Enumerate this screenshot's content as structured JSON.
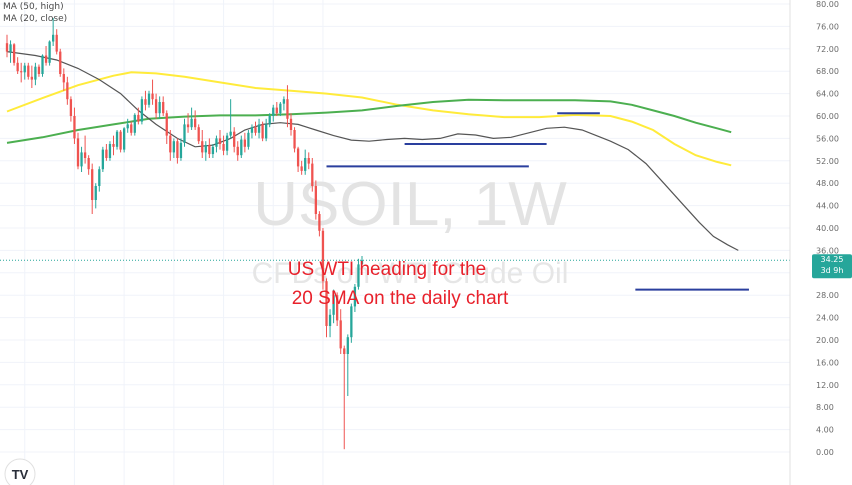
{
  "indicators": [
    {
      "label": "MA (50, high)"
    },
    {
      "label": "MA (20, close)"
    }
  ],
  "watermark": {
    "symbol": "USOIL, 1W",
    "description": "CFDs on WTI Crude Oil"
  },
  "annotation": {
    "line1": "US WTI heading for the",
    "line2": "20 SMA on the daily chart"
  },
  "price_badge": {
    "price": "34.25",
    "time": "3d 9h"
  },
  "logo_text": "TV",
  "colors": {
    "up": "#26a69a",
    "down": "#ef5350",
    "ma50": "#4caf50",
    "ma_yellow": "#ffeb3b",
    "ma20": "#555555",
    "support": "#2a3f9e",
    "badge": "#26a69a",
    "annotation": "#e8212b"
  },
  "chart_data": {
    "type": "candlestick",
    "ylim": [
      0,
      80
    ],
    "yticks": [
      "80.00",
      "76.00",
      "72.00",
      "68.00",
      "64.00",
      "60.00",
      "56.00",
      "52.00",
      "48.00",
      "44.00",
      "40.00",
      "36.00",
      "32.00",
      "28.00",
      "24.00",
      "20.00",
      "16.00",
      "12.00",
      "8.00",
      "4.00",
      "0.00"
    ],
    "candles": [
      [
        73.0,
        74.5,
        70.5,
        71.5
      ],
      [
        71.5,
        73.5,
        69.5,
        72.8
      ],
      [
        72.8,
        73.0,
        69.0,
        69.5
      ],
      [
        69.5,
        70.5,
        67.5,
        68.0
      ],
      [
        68.0,
        69.5,
        66.0,
        67.8
      ],
      [
        67.8,
        69.5,
        66.5,
        69.0
      ],
      [
        69.0,
        69.5,
        66.5,
        67.0
      ],
      [
        67.0,
        69.0,
        65.0,
        66.5
      ],
      [
        66.5,
        69.5,
        65.5,
        68.8
      ],
      [
        68.8,
        69.2,
        67.0,
        67.5
      ],
      [
        67.5,
        71.0,
        67.0,
        70.8
      ],
      [
        70.8,
        72.5,
        69.0,
        69.5
      ],
      [
        69.5,
        73.5,
        69.0,
        73.3
      ],
      [
        73.3,
        77.5,
        72.5,
        74.5
      ],
      [
        74.5,
        75.5,
        71.0,
        71.5
      ],
      [
        71.5,
        72.0,
        67.0,
        67.5
      ],
      [
        67.5,
        68.5,
        64.5,
        66.0
      ],
      [
        66.0,
        67.0,
        62.0,
        63.0
      ],
      [
        63.0,
        63.5,
        59.0,
        60.0
      ],
      [
        60.0,
        61.5,
        55.0,
        56.0
      ],
      [
        56.0,
        57.0,
        50.5,
        51.0
      ],
      [
        51.0,
        54.5,
        50.0,
        53.5
      ],
      [
        53.5,
        56.5,
        51.5,
        52.5
      ],
      [
        52.5,
        53.0,
        49.5,
        50.5
      ],
      [
        50.5,
        51.5,
        42.5,
        45.0
      ],
      [
        45.0,
        48.0,
        43.5,
        47.5
      ],
      [
        47.5,
        51.0,
        46.5,
        50.5
      ],
      [
        50.5,
        54.5,
        50.0,
        54.0
      ],
      [
        54.0,
        55.0,
        52.0,
        52.5
      ],
      [
        52.5,
        55.5,
        52.0,
        55.0
      ],
      [
        55.0,
        56.5,
        53.0,
        54.5
      ],
      [
        54.5,
        57.5,
        54.0,
        57.2
      ],
      [
        57.2,
        57.5,
        53.5,
        54.0
      ],
      [
        54.0,
        58.0,
        53.5,
        57.8
      ],
      [
        57.8,
        59.5,
        57.0,
        58.5
      ],
      [
        58.5,
        59.0,
        56.5,
        57.0
      ],
      [
        57.0,
        60.5,
        56.5,
        60.2
      ],
      [
        60.2,
        61.5,
        58.5,
        59.0
      ],
      [
        59.0,
        63.5,
        58.5,
        63.0
      ],
      [
        63.0,
        64.5,
        61.0,
        62.0
      ],
      [
        62.0,
        64.5,
        61.5,
        64.0
      ],
      [
        64.0,
        66.5,
        62.0,
        63.0
      ],
      [
        63.0,
        64.0,
        59.5,
        60.5
      ],
      [
        60.5,
        63.5,
        59.5,
        62.5
      ],
      [
        62.5,
        63.5,
        60.0,
        60.5
      ],
      [
        60.5,
        61.0,
        55.0,
        56.5
      ],
      [
        56.5,
        57.5,
        52.0,
        53.5
      ],
      [
        53.5,
        56.0,
        52.5,
        55.5
      ],
      [
        55.5,
        56.0,
        51.5,
        52.5
      ],
      [
        52.5,
        56.0,
        52.0,
        55.2
      ],
      [
        55.2,
        59.5,
        54.5,
        58.5
      ],
      [
        58.5,
        60.5,
        57.0,
        58.0
      ],
      [
        58.0,
        61.5,
        57.5,
        59.5
      ],
      [
        59.5,
        61.0,
        57.5,
        58.0
      ],
      [
        58.0,
        58.5,
        55.0,
        55.5
      ],
      [
        55.5,
        57.5,
        52.5,
        53.5
      ],
      [
        53.5,
        55.5,
        52.0,
        54.8
      ],
      [
        54.8,
        56.0,
        52.5,
        53.2
      ],
      [
        53.2,
        55.0,
        52.5,
        54.5
      ],
      [
        54.5,
        56.5,
        53.5,
        56.0
      ],
      [
        56.0,
        57.5,
        54.0,
        55.0
      ],
      [
        55.0,
        56.5,
        53.0,
        53.8
      ],
      [
        53.8,
        57.0,
        53.0,
        56.5
      ],
      [
        56.5,
        63.0,
        56.0,
        57.2
      ],
      [
        57.2,
        58.0,
        53.5,
        54.5
      ],
      [
        54.5,
        55.5,
        52.0,
        53.0
      ],
      [
        53.0,
        56.5,
        52.5,
        55.8
      ],
      [
        55.8,
        57.0,
        53.5,
        54.5
      ],
      [
        54.5,
        57.5,
        54.0,
        57.0
      ],
      [
        57.0,
        58.5,
        56.0,
        58.0
      ],
      [
        58.0,
        59.0,
        56.5,
        57.0
      ],
      [
        57.0,
        59.5,
        56.0,
        58.5
      ],
      [
        58.5,
        59.0,
        55.5,
        56.0
      ],
      [
        56.0,
        59.5,
        55.5,
        58.5
      ],
      [
        58.5,
        60.5,
        58.0,
        60.0
      ],
      [
        60.0,
        62.0,
        59.0,
        61.5
      ],
      [
        61.5,
        62.5,
        60.0,
        60.5
      ],
      [
        60.5,
        62.5,
        60.0,
        62.2
      ],
      [
        62.2,
        63.5,
        61.0,
        63.0
      ],
      [
        63.0,
        65.5,
        58.0,
        59.5
      ],
      [
        59.5,
        60.5,
        56.5,
        57.5
      ],
      [
        57.5,
        58.0,
        53.5,
        54.2
      ],
      [
        54.2,
        54.5,
        50.0,
        51.0
      ],
      [
        51.0,
        52.0,
        49.5,
        50.2
      ],
      [
        50.2,
        54.0,
        49.5,
        52.5
      ],
      [
        52.5,
        53.5,
        50.5,
        51.5
      ],
      [
        51.5,
        52.5,
        46.5,
        47.5
      ],
      [
        47.5,
        48.5,
        41.5,
        42.5
      ],
      [
        42.5,
        43.0,
        38.5,
        39.5
      ],
      [
        39.5,
        40.0,
        29.0,
        30.5
      ],
      [
        30.5,
        31.0,
        20.5,
        22.5
      ],
      [
        22.5,
        25.5,
        20.5,
        24.5
      ],
      [
        24.5,
        29.0,
        23.0,
        28.0
      ],
      [
        28.0,
        28.5,
        22.5,
        23.5
      ],
      [
        23.5,
        25.5,
        17.5,
        18.5
      ],
      [
        18.5,
        19.0,
        0.5,
        17.5
      ],
      [
        17.5,
        21.0,
        10.0,
        20.5
      ],
      [
        20.5,
        26.5,
        19.5,
        26.0
      ],
      [
        26.0,
        30.0,
        25.0,
        29.5
      ],
      [
        29.5,
        34.5,
        29.0,
        33.5
      ],
      [
        33.5,
        35.0,
        33.0,
        34.25
      ]
    ],
    "ma20": [
      [
        0,
        71.5
      ],
      [
        8,
        70.8
      ],
      [
        14,
        70.0
      ],
      [
        20,
        68.5
      ],
      [
        26,
        66.5
      ],
      [
        32,
        64.0
      ],
      [
        37,
        61.0
      ],
      [
        42,
        58.5
      ],
      [
        48,
        56.0
      ],
      [
        53,
        54.5
      ],
      [
        58,
        54.8
      ],
      [
        63,
        56.0
      ],
      [
        67,
        57.5
      ],
      [
        72,
        58.5
      ],
      [
        77,
        58.8
      ],
      [
        82,
        58.5
      ],
      [
        87,
        57.5
      ],
      [
        92,
        56.5
      ],
      [
        97,
        55.7
      ],
      [
        102,
        55.5
      ],
      [
        107,
        55.8
      ],
      [
        112,
        56.0
      ],
      [
        117,
        55.8
      ],
      [
        122,
        56.0
      ],
      [
        127,
        56.8
      ],
      [
        132,
        56.6
      ],
      [
        137,
        56.0
      ],
      [
        142,
        56.2
      ],
      [
        147,
        57.0
      ],
      [
        152,
        57.8
      ],
      [
        157,
        58.0
      ],
      [
        162,
        57.5
      ],
      [
        166,
        56.5
      ],
      [
        170,
        55.5
      ],
      [
        175,
        54.0
      ],
      [
        180,
        51.5
      ],
      [
        185,
        48.0
      ],
      [
        190,
        44.5
      ],
      [
        195,
        41.0
      ],
      [
        199,
        38.5
      ],
      [
        203,
        37.0
      ],
      [
        206,
        36.0
      ]
    ],
    "ma50": [
      [
        0,
        55.2
      ],
      [
        10,
        56.2
      ],
      [
        20,
        57.5
      ],
      [
        30,
        58.5
      ],
      [
        40,
        59.5
      ],
      [
        50,
        59.9
      ],
      [
        60,
        60.1
      ],
      [
        70,
        60.1
      ],
      [
        80,
        60.3
      ],
      [
        90,
        60.6
      ],
      [
        100,
        61.0
      ],
      [
        110,
        61.8
      ],
      [
        120,
        62.5
      ],
      [
        130,
        62.9
      ],
      [
        140,
        62.8
      ],
      [
        150,
        62.8
      ],
      [
        160,
        62.8
      ],
      [
        170,
        62.6
      ],
      [
        176,
        62.0
      ],
      [
        182,
        61.0
      ],
      [
        188,
        60.0
      ],
      [
        194,
        58.8
      ],
      [
        200,
        57.8
      ],
      [
        204,
        57.1
      ]
    ],
    "ma_yellow": [
      [
        0,
        60.8
      ],
      [
        10,
        63.2
      ],
      [
        20,
        65.5
      ],
      [
        30,
        67.2
      ],
      [
        35,
        67.8
      ],
      [
        42,
        67.6
      ],
      [
        50,
        67.0
      ],
      [
        60,
        66.0
      ],
      [
        70,
        65.0
      ],
      [
        80,
        64.5
      ],
      [
        90,
        64.0
      ],
      [
        100,
        63.3
      ],
      [
        110,
        62.0
      ],
      [
        120,
        61.0
      ],
      [
        130,
        60.3
      ],
      [
        140,
        59.8
      ],
      [
        150,
        59.8
      ],
      [
        160,
        60.2
      ],
      [
        170,
        60.0
      ],
      [
        176,
        59.0
      ],
      [
        182,
        57.5
      ],
      [
        188,
        55.0
      ],
      [
        194,
        53.0
      ],
      [
        200,
        51.8
      ],
      [
        204,
        51.2
      ]
    ],
    "support_lines": [
      {
        "x1": 90,
        "x2": 147,
        "y": 51.0
      },
      {
        "x1": 112,
        "x2": 152,
        "y": 55.0
      },
      {
        "x1": 155,
        "x2": 167,
        "y": 60.5
      },
      {
        "x1": 177,
        "x2": 209,
        "y": 29.0
      }
    ]
  }
}
